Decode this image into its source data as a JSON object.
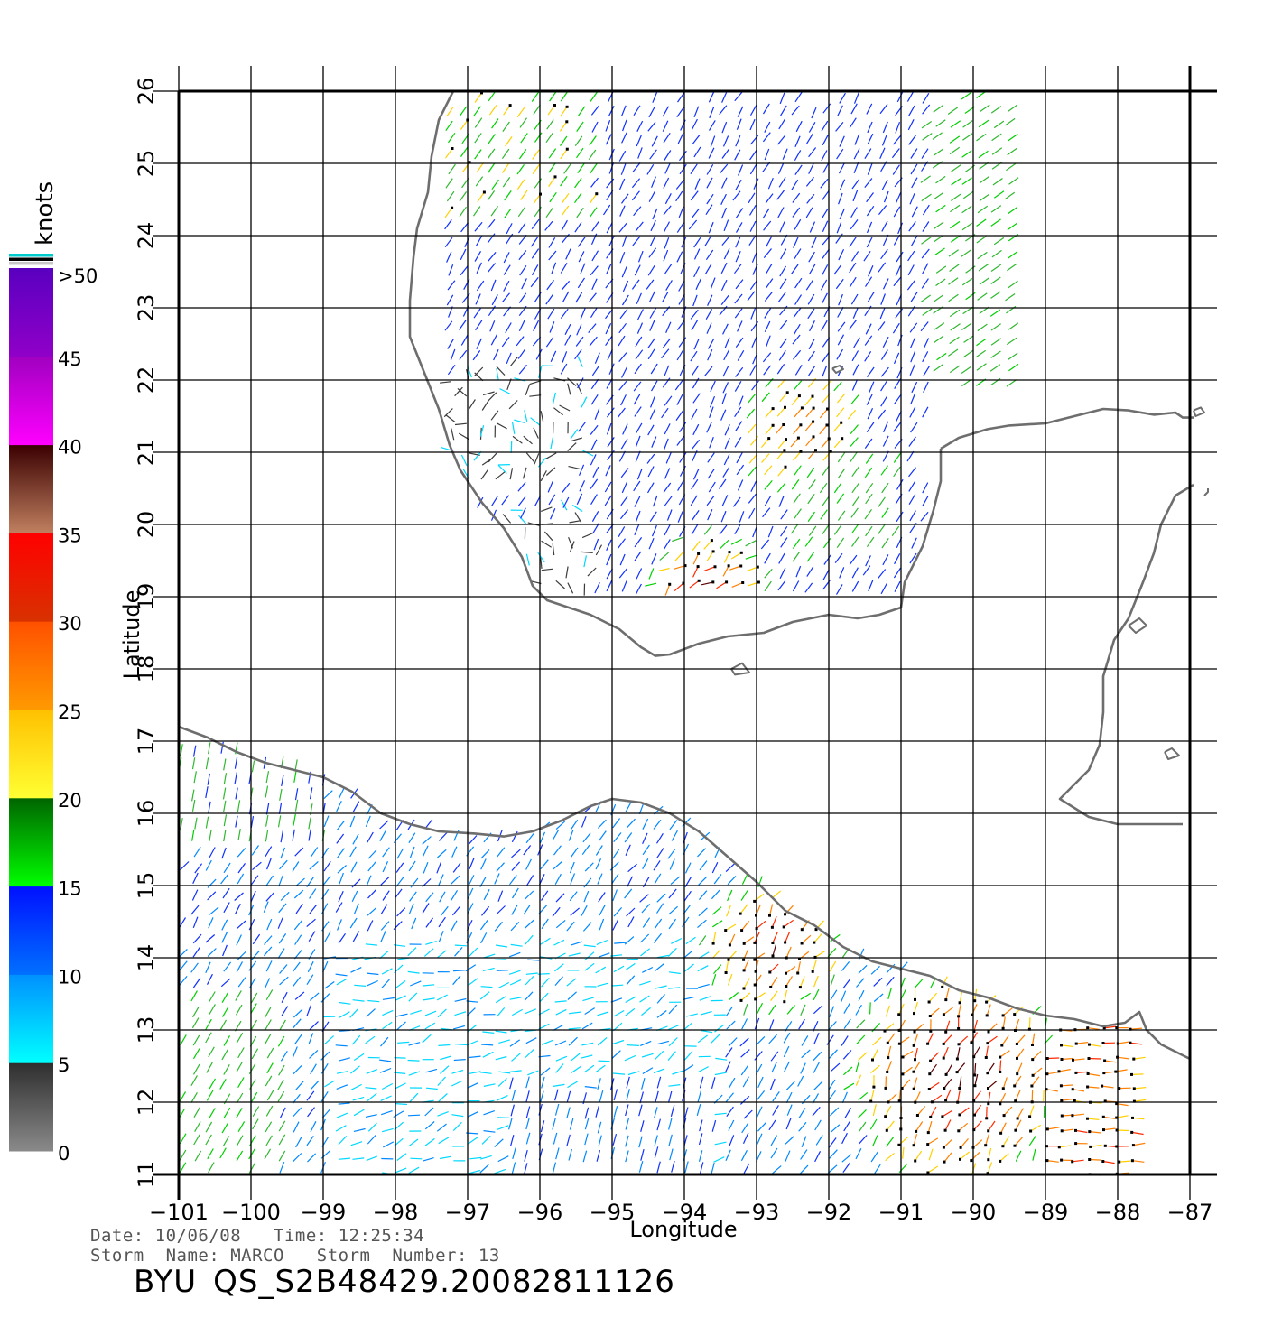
{
  "map": {
    "xlabel": "Longitude",
    "ylabel": "Latitude",
    "lon_ticks": [
      -101,
      -100,
      -99,
      -98,
      -97,
      -96,
      -95,
      -94,
      -93,
      -92,
      -91,
      -90,
      -89,
      -88,
      -87
    ],
    "lat_ticks": [
      11,
      12,
      13,
      14,
      15,
      16,
      17,
      18,
      19,
      20,
      21,
      22,
      23,
      24,
      25,
      26
    ],
    "lon_range": [
      -101,
      -87
    ],
    "lat_range": [
      11,
      26
    ],
    "grid": true,
    "coast_color": "#6e6e6e"
  },
  "colorbar": {
    "unit": "knots",
    "labels": [
      ">50",
      "45",
      "40",
      "35",
      "30",
      "25",
      "20",
      "15",
      "10",
      "5",
      "0"
    ],
    "bands": [
      {
        "from": 0,
        "to": 5,
        "top": "#2e2e2e",
        "bottom": "#8a8a8a"
      },
      {
        "from": 5,
        "to": 10,
        "top": "#0090ff",
        "bottom": "#00ffff"
      },
      {
        "from": 10,
        "to": 15,
        "top": "#0010ff",
        "bottom": "#0070ff"
      },
      {
        "from": 15,
        "to": 20,
        "top": "#006400",
        "bottom": "#00ff00"
      },
      {
        "from": 20,
        "to": 25,
        "top": "#ffc000",
        "bottom": "#ffff33"
      },
      {
        "from": 25,
        "to": 30,
        "top": "#ff5000",
        "bottom": "#ff9a00"
      },
      {
        "from": 30,
        "to": 35,
        "top": "#ff0000",
        "bottom": "#d83200"
      },
      {
        "from": 35,
        "to": 40,
        "top": "#3a0000",
        "bottom": "#c08060"
      },
      {
        "from": 40,
        "to": 45,
        "top": "#a000c0",
        "bottom": "#ff00ff"
      },
      {
        "from": 45,
        "to": 50,
        "top": "#5a00c0",
        "bottom": "#9000c8"
      }
    ],
    "cap_colors": [
      "#00cccc",
      "#000000",
      "#c8c8c8"
    ]
  },
  "footer": {
    "date_label": "Date:",
    "date": "10/06/08",
    "time_label": "Time:",
    "time": "12:25:34",
    "storm_name_label": "Storm  Name:",
    "storm_name": "MARCO",
    "storm_number_label": "Storm  Number:",
    "storm_number": "13",
    "org": "BYU",
    "file_id": "QS_S2B48429.20082811126"
  }
}
